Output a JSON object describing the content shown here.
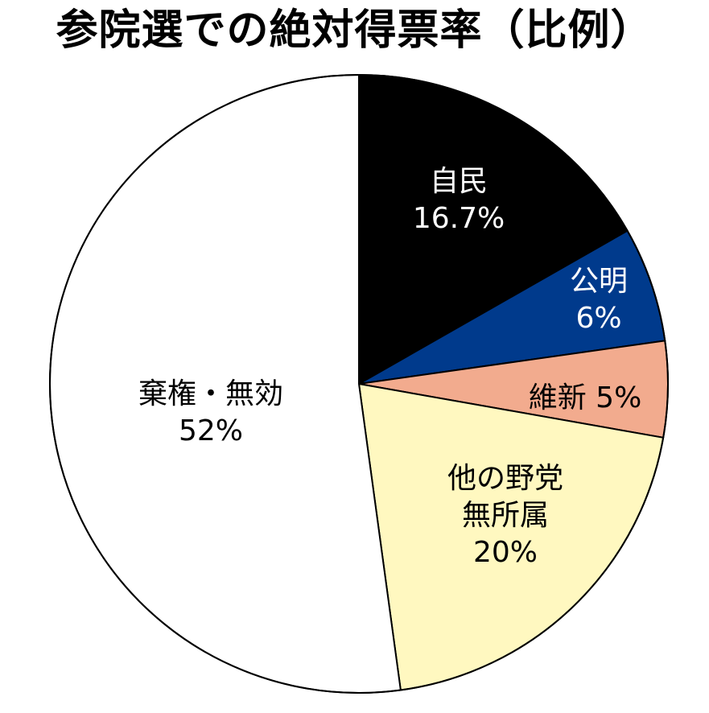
{
  "chart_data": {
    "type": "pie",
    "title": "参院選での絶対得票率（比例）",
    "start_angle_deg": 0,
    "direction": "clockwise",
    "slices": [
      {
        "lines": [
          "自民",
          "16.7%"
        ],
        "value": 16.7,
        "color": "#000000",
        "text_color": "#ffffff"
      },
      {
        "lines": [
          "公明",
          "6%"
        ],
        "value": 6.0,
        "color": "#003a8c",
        "text_color": "#ffffff"
      },
      {
        "lines": [
          "維新 5%"
        ],
        "value": 5.0,
        "color": "#f2ab8e",
        "text_color": "#000000"
      },
      {
        "lines": [
          "他の野党",
          "無所属",
          "20%"
        ],
        "value": 20.0,
        "color": "#fff8c0",
        "text_color": "#000000"
      },
      {
        "lines": [
          "棄権・無効",
          "52%"
        ],
        "value": 52.0,
        "color": "#ffffff",
        "text_color": "#000000"
      }
    ]
  }
}
